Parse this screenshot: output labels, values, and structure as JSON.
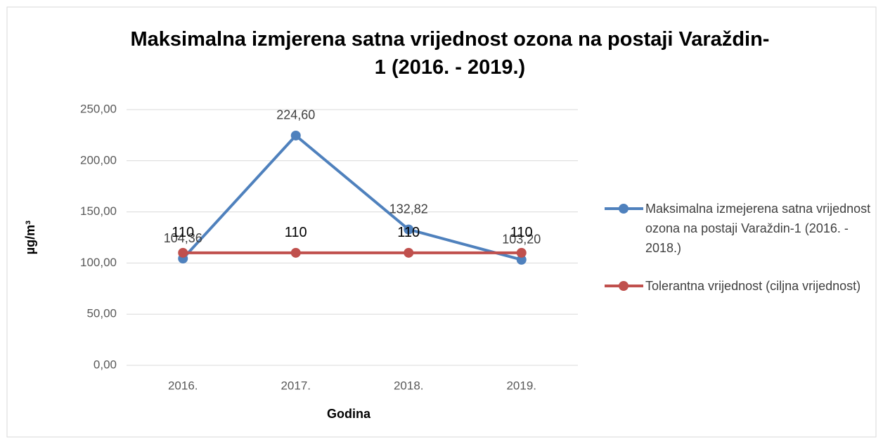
{
  "chart_data": {
    "type": "line",
    "title": "Maksimalna izmjerena satna vrijednost ozona na postaji Varaždin-1 (2016. - 2019.)",
    "categories": [
      "2016.",
      "2017.",
      "2018.",
      "2019."
    ],
    "series": [
      {
        "name": "Maksimalna izmejerena satna vrijednost ozona na postaji Varaždin-1 (2016. - 2018.)",
        "color": "#4f81bd",
        "values": [
          104.36,
          224.6,
          132.82,
          103.2
        ],
        "value_labels": [
          "104,36",
          "224,60",
          "132,82",
          "103,20"
        ]
      },
      {
        "name": "Tolerantna vrijednost (ciljna vrijednost)",
        "color": "#c0504d",
        "values": [
          110,
          110,
          110,
          110
        ]
      }
    ],
    "xlabel": "Godina",
    "ylabel": "µg/m³",
    "ylim": [
      0,
      250
    ],
    "yticks": [
      {
        "value": 0,
        "label": "0,00"
      },
      {
        "value": 50,
        "label": "50,00"
      },
      {
        "value": 100,
        "label": "100,00"
      },
      {
        "value": 150,
        "label": "150,00"
      },
      {
        "value": 200,
        "label": "200,00"
      },
      {
        "value": 250,
        "label": "250,00"
      }
    ],
    "grid": true,
    "legend": "right"
  }
}
